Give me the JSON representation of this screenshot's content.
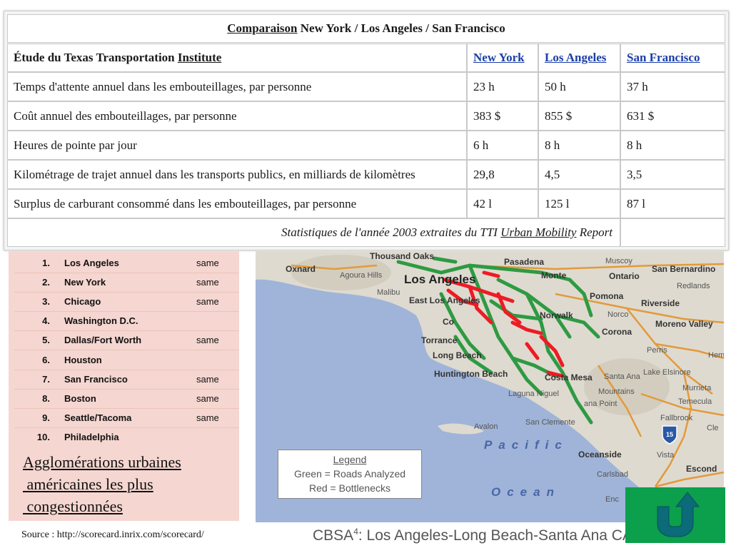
{
  "comparison": {
    "title_prefix": "Comparaison",
    "title_rest": " New York / Los Angeles / San Francisco",
    "header_label": "Étude du Texas Transportation ",
    "header_label_underlined": "Institute",
    "cities": [
      "New York",
      "Los Angeles",
      "San Francisco"
    ],
    "rows": [
      {
        "label": "Temps d'attente annuel dans les embouteillages, par personne",
        "ny": "23 h",
        "la": "50 h",
        "sf": "37 h"
      },
      {
        "label": "Coût annuel des embouteillages, par personne",
        "ny": "383 $",
        "la": "855 $",
        "sf": "631 $"
      },
      {
        "label": "Heures de pointe par jour",
        "ny": "6 h",
        "la": "8 h",
        "sf": "8 h"
      },
      {
        "label": "Kilométrage de trajet annuel dans les transports publics, en milliards de kilomètres",
        "ny": "29,8",
        "la": "4,5",
        "sf": "3,5"
      },
      {
        "label": "Surplus de carburant consommé dans les embouteillages, par personne",
        "ny": "42 l",
        "la": "125 l",
        "sf": "87 l"
      }
    ],
    "footer_a": "Statistiques de l'année 2003 extraites du TTI ",
    "footer_b": "Urban Mobility",
    "footer_c": " Report"
  },
  "ranking": {
    "rows": [
      {
        "rank": "1.",
        "city": "Los Angeles",
        "status": "same"
      },
      {
        "rank": "2.",
        "city": "New York",
        "status": "same"
      },
      {
        "rank": "3.",
        "city": "Chicago",
        "status": "same"
      },
      {
        "rank": "4.",
        "city": "Washington D.C.",
        "status": ""
      },
      {
        "rank": "5.",
        "city": "Dallas/Fort Worth",
        "status": "same"
      },
      {
        "rank": "6.",
        "city": "Houston",
        "status": ""
      },
      {
        "rank": "7.",
        "city": "San Francisco",
        "status": "same"
      },
      {
        "rank": "8.",
        "city": "Boston",
        "status": "same"
      },
      {
        "rank": "9.",
        "city": "Seattle/Tacoma",
        "status": "same"
      },
      {
        "rank": "10.",
        "city": "Philadelphia",
        "status": ""
      }
    ],
    "title_lines": [
      "Agglomérations urbaines",
      " américaines les plus",
      " congestionnées"
    ],
    "source": "Source : http://scorecard.inrix.com/scorecard/"
  },
  "map": {
    "labels": {
      "oxnard": "Oxnard",
      "agoura_hills": "Agoura Hills",
      "los_angeles": "Los Angeles",
      "pasadena": "Pasadena",
      "monte": "Monte",
      "ontario": "Ontario",
      "san_bernardino": "San Bernardino",
      "redlands": "Redlands",
      "malibu": "Malibu",
      "east_los_angeles": "East Los Angeles",
      "pomona": "Pomona",
      "riverside": "Riverside",
      "norwalk": "Norwalk",
      "norco": "Norco",
      "moreno_valley": "Moreno Valley",
      "corona": "Corona",
      "compton": "Co",
      "torrance": "Torrance",
      "long_beach": "Long Beach",
      "perris": "Perris",
      "huntington_beach": "Huntington Beach",
      "costa_mesa": "Costa Mesa",
      "santa_ana": "Santa Ana",
      "lake_elsinore": "Lake Elsinore",
      "murrieta": "Murrieta",
      "laguna_niguel": "Laguna Niguel",
      "mountains": "Mountains",
      "dana_point": "ana Point",
      "temecula": "Temecula",
      "fallbrook": "Fallbrook",
      "avalon": "Avalon",
      "san_clemente": "San Clemente",
      "oceanside": "Oceanside",
      "vista": "Vista",
      "carlsbad": "Carlsbad",
      "escondido": "Escond",
      "encinitas": "Enc",
      "muscoy": "Muscoy",
      "hemet": "Hem",
      "cle": "Cle",
      "thousand_oaks": "Thousand Oaks",
      "interstate_shield": "15"
    },
    "ocean_words": [
      "Pacific",
      "Ocean"
    ],
    "legend": {
      "title": "Legend",
      "green": "Green = Roads Analyzed",
      "red": "Red = Bottlenecks"
    },
    "colors": {
      "land": "#dedad0",
      "water": "#9fb4d8",
      "roads_analyzed": "#2e9a42",
      "bottlenecks": "#ee1b24",
      "highway": "#e39a3a"
    }
  },
  "caption": {
    "prefix": "CBSA",
    "sup": "4",
    "text": ": Los Angeles-Long Beach-Santa Ana CA"
  },
  "nav": {
    "back_color": "#0c9f4c"
  }
}
